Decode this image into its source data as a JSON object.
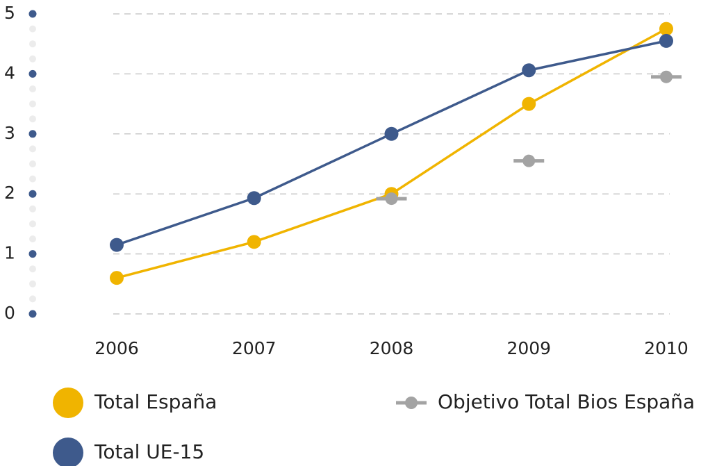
{
  "chart_data": {
    "type": "line",
    "x": [
      "2006",
      "2007",
      "2008",
      "2009",
      "2010"
    ],
    "series": [
      {
        "name": "Total España",
        "color": "#f0b400",
        "values": [
          0.6,
          1.2,
          2.0,
          3.5,
          4.75
        ]
      },
      {
        "name": "Total UE-15",
        "color": "#3e5a8c",
        "values": [
          1.15,
          1.93,
          3.0,
          4.06,
          4.55
        ]
      },
      {
        "name": "Objetivo Total Bios España",
        "color": "#a3a3a3",
        "style": "markers",
        "values": [
          null,
          null,
          1.92,
          2.55,
          3.95
        ]
      }
    ],
    "ylim": [
      0,
      5
    ],
    "yticks": [
      0,
      1,
      2,
      3,
      4,
      5
    ],
    "grid": true
  }
}
